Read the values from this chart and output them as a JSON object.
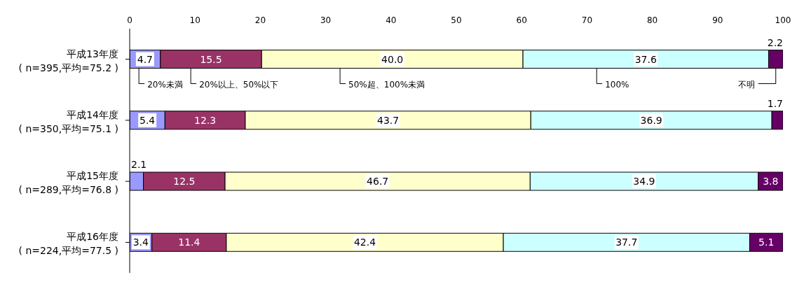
{
  "chart_data": {
    "type": "bar",
    "orientation": "horizontal",
    "stacked": true,
    "categories": [
      "平成13年度\n( n=395,平均=75.2 )",
      "平成14年度\n( n=350,平均=75.1 )",
      "平成15年度\n( n=289,平均=76.8 )",
      "平成16年度\n( n=224,平均=77.5 )"
    ],
    "xlim": [
      0,
      100
    ],
    "xticks": [
      0,
      10,
      20,
      30,
      40,
      50,
      60,
      70,
      80,
      90,
      100
    ],
    "series": [
      {
        "name": "20%未満",
        "color": "#9999ff",
        "values": [
          4.7,
          5.4,
          2.1,
          3.4
        ],
        "value_labels": [
          "4.7",
          "5.4",
          "2.1",
          "3.4"
        ]
      },
      {
        "name": "20%以上、50%以下",
        "color": "#993366",
        "values": [
          15.5,
          12.3,
          12.5,
          11.4
        ],
        "value_labels": [
          "15.5",
          "12.3",
          "12.5",
          "11.4"
        ]
      },
      {
        "name": "50%超、100%未満",
        "color": "#ffffcc",
        "values": [
          40.0,
          43.7,
          46.7,
          42.4
        ],
        "value_labels": [
          "40.0",
          "43.7",
          "46.7",
          "42.4"
        ]
      },
      {
        "name": "100%",
        "color": "#ccffff",
        "values": [
          37.6,
          36.9,
          34.9,
          37.7
        ],
        "value_labels": [
          "37.6",
          "36.9",
          "34.9",
          "37.7"
        ]
      },
      {
        "name": "不明",
        "color": "#660066",
        "values": [
          2.2,
          1.7,
          3.8,
          5.1
        ],
        "value_labels": [
          "2.2",
          "1.7",
          "3.8",
          "5.1"
        ]
      }
    ]
  }
}
